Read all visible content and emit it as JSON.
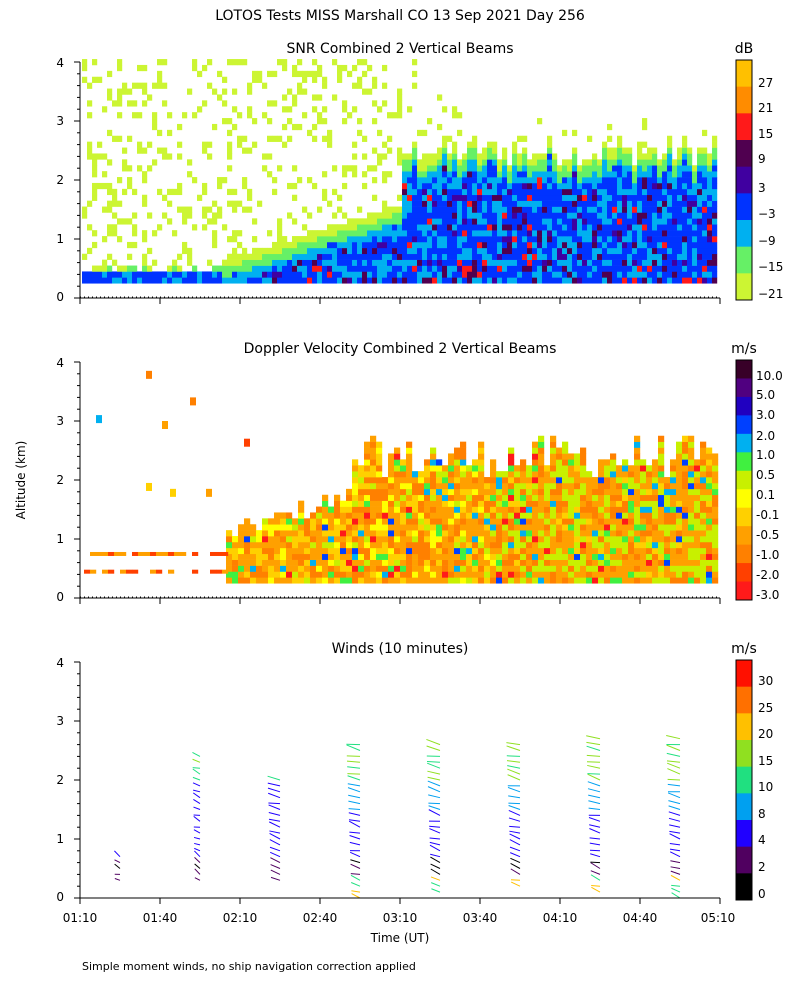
{
  "main_title": "LOTOS Tests MISS Marshall CO  13 Sep 2021 Day 256",
  "footnote": "Simple moment winds, no ship navigation correction applied",
  "colors": {
    "snr": [
      "#ccf533",
      "#66f066",
      "#00b0f0",
      "#0033ff",
      "#4000a0",
      "#500050",
      "#ff1a1a",
      "#ff8c00",
      "#ffc000"
    ],
    "vel": [
      "#ff1a1a",
      "#ff4000",
      "#ff8000",
      "#ffa000",
      "#ffd000",
      "#ffff00",
      "#c8f000",
      "#40f040",
      "#00b0f0",
      "#0040ff",
      "#2000c0",
      "#500080",
      "#380028"
    ],
    "wind": [
      "#000000",
      "#500060",
      "#2000ff",
      "#00a0f0",
      "#20e080",
      "#90e020",
      "#ffc000",
      "#ff7000",
      "#ff1000"
    ]
  },
  "chart_data": [
    {
      "type": "heatmap",
      "title": "SNR Combined 2 Vertical Beams",
      "xlabel": "",
      "ylabel": "",
      "ylim": [
        0,
        4
      ],
      "y_ticks": [
        "0",
        "1",
        "2",
        "3",
        "4"
      ],
      "colorbar_unit": "dB",
      "colorbar_ticks": [
        "27",
        "21",
        "15",
        "9",
        "3",
        "−3",
        "−9",
        "−15",
        "−21"
      ]
    },
    {
      "type": "heatmap",
      "title": "Doppler Velocity Combined 2 Vertical Beams",
      "xlabel": "",
      "ylabel": "Altitude (km)",
      "ylim": [
        0,
        4
      ],
      "y_ticks": [
        "0",
        "1",
        "2",
        "3",
        "4"
      ],
      "colorbar_unit": "m/s",
      "colorbar_ticks": [
        "10.0",
        "5.0",
        "3.0",
        "2.0",
        "1.0",
        "0.5",
        "0.1",
        "-0.1",
        "-0.5",
        "-1.0",
        "-2.0",
        "-3.0"
      ]
    },
    {
      "type": "scatter",
      "title": "Winds (10 minutes)",
      "xlabel": "Time (UT)",
      "ylabel": "",
      "ylim": [
        0,
        4
      ],
      "y_ticks": [
        "0",
        "1",
        "2",
        "3",
        "4"
      ],
      "x_ticks": [
        "01:10",
        "01:40",
        "02:10",
        "02:40",
        "03:10",
        "03:40",
        "04:10",
        "04:40",
        "05:10"
      ],
      "colorbar_unit": "m/s",
      "colorbar_ticks": [
        "30",
        "25",
        "20",
        "15",
        "10",
        "8",
        "4",
        "2",
        "0"
      ],
      "profiles": [
        {
          "time": "01:25",
          "bottom_km": 0.3,
          "top_km": 0.7
        },
        {
          "time": "01:55",
          "bottom_km": 0.3,
          "top_km": 2.5
        },
        {
          "time": "02:25",
          "bottom_km": 0.3,
          "top_km": 2.1
        },
        {
          "time": "02:55",
          "bottom_km": 0.0,
          "top_km": 2.7
        },
        {
          "time": "03:25",
          "bottom_km": 0.1,
          "top_km": 2.7
        },
        {
          "time": "03:55",
          "bottom_km": 0.2,
          "top_km": 2.7
        },
        {
          "time": "04:25",
          "bottom_km": 0.0,
          "top_km": 2.8
        },
        {
          "time": "04:55",
          "bottom_km": 0.0,
          "top_km": 2.8
        }
      ]
    }
  ]
}
